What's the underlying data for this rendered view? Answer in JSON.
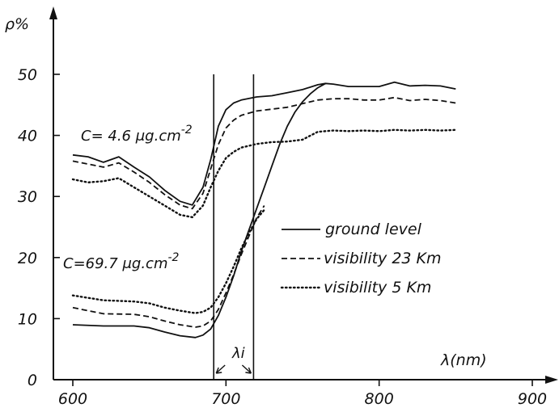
{
  "chart_data": {
    "type": "line",
    "xlabel": "λ(nm)",
    "ylabel": "ρ%",
    "xlim": [
      600,
      900
    ],
    "ylim": [
      0,
      50
    ],
    "xticks": [
      600,
      700,
      800,
      900
    ],
    "yticks": [
      0,
      10,
      20,
      30,
      40,
      50
    ],
    "grid": false,
    "legend_position": "center-right",
    "vlines": [
      692,
      718
    ],
    "vline_label": "λi",
    "annotations": [
      {
        "text": "C= 4.6 μg.cm",
        "sup": "-2"
      },
      {
        "text": "C=69.7 μg.cm",
        "sup": "-2"
      }
    ],
    "series": [
      {
        "name": "ground level",
        "style": "solid",
        "group": "high",
        "x": [
          600,
          610,
          620,
          630,
          640,
          650,
          660,
          670,
          678,
          685,
          690,
          695,
          700,
          705,
          710,
          720,
          730,
          740,
          750,
          760,
          765,
          770,
          780,
          790,
          800,
          810,
          820,
          830,
          840,
          850
        ],
        "y": [
          36.8,
          36.5,
          35.6,
          36.5,
          34.8,
          33.2,
          31.0,
          29.2,
          28.6,
          31.5,
          36.0,
          41.5,
          44.2,
          45.3,
          45.8,
          46.3,
          46.5,
          47.0,
          47.5,
          48.3,
          48.5,
          48.4,
          48.0,
          48.0,
          48.0,
          48.7,
          48.1,
          48.2,
          48.1,
          47.6
        ]
      },
      {
        "name": "visibility 23 Km",
        "style": "dashed",
        "group": "high",
        "x": [
          600,
          610,
          620,
          630,
          640,
          650,
          660,
          670,
          678,
          685,
          690,
          695,
          700,
          705,
          710,
          720,
          730,
          740,
          750,
          760,
          770,
          780,
          790,
          800,
          810,
          820,
          830,
          840,
          850
        ],
        "y": [
          35.8,
          35.3,
          34.8,
          35.5,
          34.0,
          32.3,
          30.3,
          28.6,
          28.0,
          30.5,
          34.5,
          38.5,
          41.2,
          42.5,
          43.3,
          44.0,
          44.3,
          44.6,
          45.2,
          45.8,
          46.0,
          46.0,
          45.8,
          45.8,
          46.2,
          45.7,
          45.9,
          45.7,
          45.3
        ]
      },
      {
        "name": "visibility 5 Km",
        "style": "dotted",
        "group": "high",
        "x": [
          600,
          610,
          620,
          630,
          640,
          650,
          660,
          670,
          678,
          685,
          690,
          695,
          700,
          705,
          710,
          720,
          730,
          740,
          750,
          760,
          770,
          780,
          790,
          800,
          810,
          820,
          830,
          840,
          850
        ],
        "y": [
          32.8,
          32.3,
          32.5,
          33.0,
          31.5,
          30.0,
          28.5,
          27.0,
          26.6,
          28.5,
          31.5,
          34.2,
          36.3,
          37.3,
          38.0,
          38.6,
          38.9,
          39.0,
          39.3,
          40.6,
          40.8,
          40.7,
          40.8,
          40.7,
          40.9,
          40.8,
          40.9,
          40.8,
          40.9
        ]
      },
      {
        "name": "ground level",
        "style": "solid",
        "group": "low",
        "x": [
          600,
          620,
          640,
          650,
          660,
          670,
          680,
          685,
          690,
          695,
          700,
          705,
          710,
          715,
          720,
          725,
          730,
          735,
          740,
          745,
          750,
          755,
          760,
          765
        ],
        "y": [
          9.0,
          8.8,
          8.8,
          8.5,
          7.8,
          7.2,
          6.9,
          7.3,
          8.3,
          10.5,
          13.5,
          17.0,
          21.0,
          24.5,
          28.0,
          31.5,
          35.0,
          38.5,
          41.5,
          43.8,
          45.5,
          46.8,
          47.8,
          48.5
        ]
      },
      {
        "name": "visibility 23 Km",
        "style": "dashed",
        "group": "low",
        "x": [
          600,
          620,
          640,
          650,
          660,
          670,
          680,
          685,
          690,
          695,
          700,
          705,
          710,
          715,
          720,
          725
        ],
        "y": [
          11.8,
          10.8,
          10.7,
          10.3,
          9.6,
          9.0,
          8.6,
          8.8,
          9.6,
          11.5,
          14.2,
          17.2,
          20.5,
          23.5,
          26.5,
          28.5
        ]
      },
      {
        "name": "visibility 5 Km",
        "style": "dotted",
        "group": "low",
        "x": [
          600,
          620,
          640,
          650,
          660,
          670,
          680,
          685,
          690,
          695,
          700,
          705,
          710,
          715,
          720,
          725
        ],
        "y": [
          13.8,
          13.0,
          12.8,
          12.5,
          11.8,
          11.3,
          10.9,
          11.1,
          11.8,
          13.5,
          15.8,
          18.5,
          21.5,
          24.0,
          26.3,
          27.8
        ]
      }
    ]
  }
}
